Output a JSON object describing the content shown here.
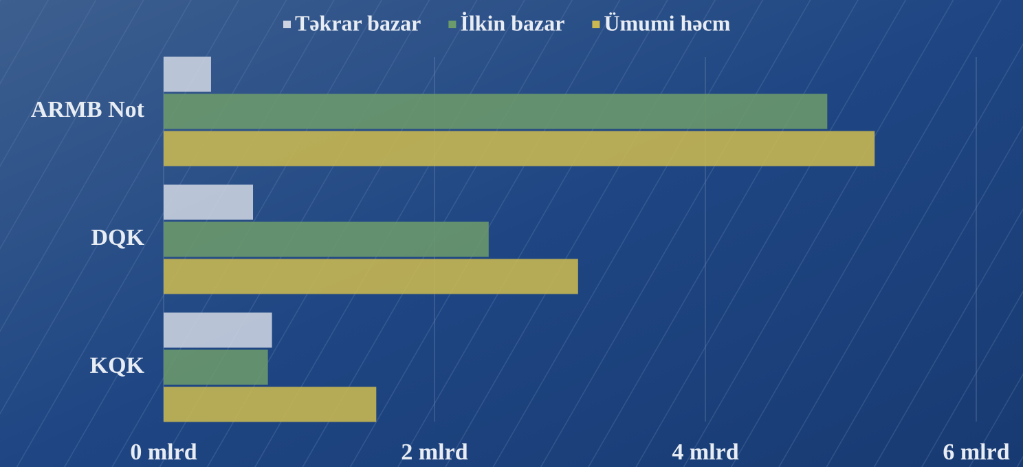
{
  "chart_data": {
    "type": "bar",
    "orientation": "horizontal",
    "categories": [
      "ARMB Not",
      "DQK",
      "KQK"
    ],
    "series": [
      {
        "name": "Təkrar bazar",
        "color": "#cdd4e1",
        "values": [
          0.35,
          0.66,
          0.8
        ]
      },
      {
        "name": "İlkin bazar",
        "color": "#6c9a6b",
        "values": [
          4.9,
          2.4,
          0.77
        ]
      },
      {
        "name": "Ümumi həcm",
        "color": "#cbb850",
        "values": [
          5.25,
          3.06,
          1.57
        ]
      }
    ],
    "xlim": [
      0,
      6
    ],
    "xticks": [
      {
        "value": 0,
        "label": "0 mlrd"
      },
      {
        "value": 2,
        "label": "2 mlrd"
      },
      {
        "value": 4,
        "label": "4 mlrd"
      },
      {
        "value": 6,
        "label": "6 mlrd"
      }
    ],
    "grid": true,
    "legend": "top"
  }
}
